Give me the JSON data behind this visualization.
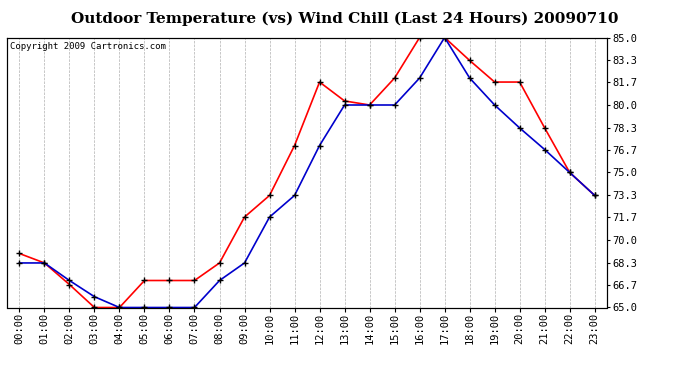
{
  "title": "Outdoor Temperature (vs) Wind Chill (Last 24 Hours) 20090710",
  "copyright": "Copyright 2009 Cartronics.com",
  "hours": [
    "00:00",
    "01:00",
    "02:00",
    "03:00",
    "04:00",
    "05:00",
    "06:00",
    "07:00",
    "08:00",
    "09:00",
    "10:00",
    "11:00",
    "12:00",
    "13:00",
    "14:00",
    "15:00",
    "16:00",
    "17:00",
    "18:00",
    "19:00",
    "20:00",
    "21:00",
    "22:00",
    "23:00"
  ],
  "outdoor_temp": [
    69.0,
    68.3,
    66.7,
    65.0,
    65.0,
    67.0,
    67.0,
    67.0,
    68.3,
    71.7,
    73.3,
    77.0,
    81.7,
    80.3,
    80.0,
    82.0,
    85.0,
    85.0,
    83.3,
    81.7,
    81.7,
    78.3,
    75.0,
    73.3
  ],
  "wind_chill": [
    68.3,
    68.3,
    67.0,
    65.8,
    65.0,
    65.0,
    65.0,
    65.0,
    67.0,
    68.3,
    71.7,
    73.3,
    77.0,
    80.0,
    80.0,
    80.0,
    82.0,
    85.0,
    82.0,
    80.0,
    78.3,
    76.7,
    75.0,
    73.3
  ],
  "temp_color": "#ff0000",
  "windchill_color": "#0000cc",
  "bg_color": "#ffffff",
  "plot_bg_color": "#ffffff",
  "grid_color": "#b0b0b0",
  "ylim": [
    65.0,
    85.0
  ],
  "yticks": [
    65.0,
    66.7,
    68.3,
    70.0,
    71.7,
    73.3,
    75.0,
    76.7,
    78.3,
    80.0,
    81.7,
    83.3,
    85.0
  ],
  "title_fontsize": 11,
  "copyright_fontsize": 6.5,
  "tick_fontsize": 7.5,
  "marker": "+",
  "markersize": 5,
  "markeredgewidth": 1.0,
  "linewidth": 1.2
}
